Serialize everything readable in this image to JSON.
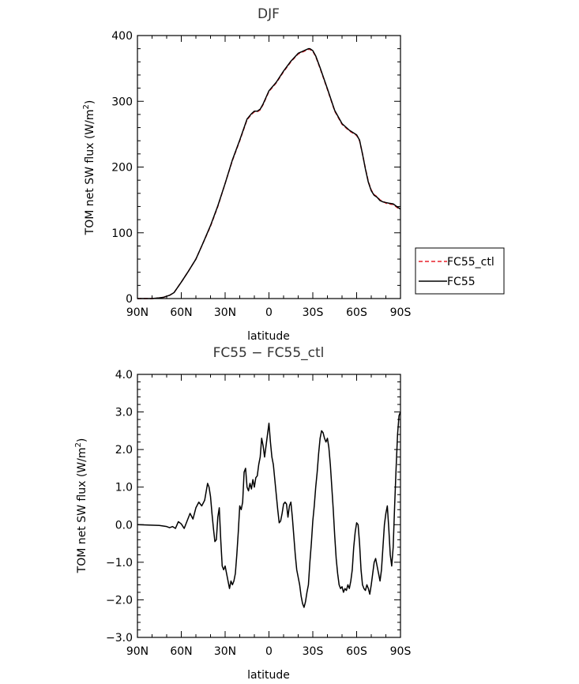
{
  "chart_data": [
    {
      "type": "line",
      "title": "DJF",
      "xlabel": "latitude",
      "ylabel_text": "TOM net SW flux (W/m",
      "ylabel_sup": "2",
      "ylabel_close": ")",
      "xlim": [
        -90,
        90
      ],
      "ylim": [
        0,
        400
      ],
      "x_ticks": [
        -90,
        -60,
        -30,
        0,
        30,
        60,
        90
      ],
      "x_tick_labels": [
        "90N",
        "60N",
        "30N",
        "0",
        "30S",
        "60S",
        "90S"
      ],
      "y_ticks": [
        0,
        100,
        200,
        300,
        400
      ],
      "y_tick_labels": [
        "0",
        "100",
        "200",
        "300",
        "400"
      ],
      "legend_position": "right",
      "series": [
        {
          "name": "FC55_ctl",
          "color": "#e8202a",
          "dash": "dashed",
          "x": [
            -90,
            -80,
            -75,
            -72,
            -68,
            -65,
            -60,
            -55,
            -50,
            -45,
            -40,
            -35,
            -30,
            -25,
            -20,
            -15,
            -12,
            -10,
            -8,
            -6,
            -4,
            -2,
            0,
            5,
            10,
            15,
            20,
            25,
            27,
            28,
            30,
            32,
            35,
            40,
            45,
            50,
            55,
            60,
            62,
            64,
            66,
            68,
            70,
            72,
            74,
            76,
            78,
            80,
            82,
            85,
            88,
            90
          ],
          "values": [
            0,
            0,
            1,
            2,
            5,
            9,
            25,
            42,
            60,
            85,
            110,
            140,
            175,
            210,
            240,
            272,
            280,
            284,
            284,
            287,
            295,
            305,
            315,
            328,
            345,
            360,
            372,
            377,
            379,
            379,
            376,
            368,
            350,
            318,
            285,
            265,
            255,
            248,
            240,
            220,
            198,
            178,
            165,
            158,
            155,
            150,
            148,
            145,
            144,
            143,
            138,
            135
          ]
        },
        {
          "name": "FC55",
          "color": "#000000",
          "dash": "solid",
          "x": [
            -90,
            -80,
            -75,
            -72,
            -68,
            -65,
            -60,
            -55,
            -50,
            -45,
            -40,
            -35,
            -30,
            -25,
            -20,
            -15,
            -12,
            -10,
            -8,
            -6,
            -4,
            -2,
            0,
            5,
            10,
            15,
            20,
            25,
            27,
            28,
            30,
            32,
            35,
            40,
            45,
            50,
            55,
            60,
            62,
            64,
            66,
            68,
            70,
            72,
            74,
            76,
            78,
            80,
            82,
            85,
            88,
            90
          ],
          "values": [
            0,
            0,
            1,
            2,
            5,
            9,
            25,
            42,
            60,
            85,
            111,
            141,
            175,
            211,
            241,
            273,
            281,
            285,
            285,
            288,
            296,
            306,
            316,
            329,
            346,
            361,
            373,
            378,
            380,
            380,
            377,
            369,
            351,
            319,
            286,
            266,
            256,
            249,
            241,
            220,
            197,
            177,
            164,
            157,
            154,
            149,
            147,
            146,
            145,
            144,
            139,
            136
          ]
        }
      ]
    },
    {
      "type": "line",
      "title": "FC55 − FC55_ctl",
      "xlabel": "latitude",
      "ylabel_text": "TOM net SW flux (W/m",
      "ylabel_sup": "2",
      "ylabel_close": ")",
      "xlim": [
        -90,
        90
      ],
      "ylim": [
        -3,
        4
      ],
      "x_ticks": [
        -90,
        -60,
        -30,
        0,
        30,
        60,
        90
      ],
      "x_tick_labels": [
        "90N",
        "60N",
        "30N",
        "0",
        "30S",
        "60S",
        "90S"
      ],
      "y_ticks": [
        -3,
        -2,
        -1,
        0,
        1,
        2,
        3,
        4
      ],
      "y_tick_labels": [
        "−3.0",
        "−2.0",
        "−1.0",
        "0.0",
        "1.0",
        "2.0",
        "3.0",
        "4.0"
      ],
      "series": [
        {
          "color": "#000000",
          "dash": "solid",
          "x": [
            -90,
            -75,
            -70,
            -68,
            -66,
            -64,
            -62,
            -60,
            -58,
            -56,
            -54,
            -52,
            -50,
            -48,
            -46,
            -44,
            -42,
            -41,
            -40,
            -39,
            -38,
            -37,
            -36,
            -35,
            -34,
            -33,
            -32,
            -31,
            -30,
            -29,
            -28,
            -27,
            -26,
            -25,
            -24,
            -23,
            -22,
            -21,
            -20,
            -19,
            -18,
            -17,
            -16,
            -15,
            -14,
            -13,
            -12,
            -11,
            -10,
            -9,
            -8,
            -7,
            -6,
            -5,
            -4,
            -3,
            -2,
            -1,
            0,
            1,
            2,
            3,
            4,
            5,
            6,
            7,
            8,
            9,
            10,
            11,
            12,
            13,
            14,
            15,
            16,
            17,
            18,
            19,
            20,
            21,
            22,
            23,
            24,
            25,
            26,
            27,
            28,
            29,
            30,
            31,
            32,
            33,
            34,
            35,
            36,
            37,
            38,
            39,
            40,
            41,
            42,
            43,
            44,
            45,
            46,
            47,
            48,
            49,
            50,
            51,
            52,
            53,
            54,
            55,
            56,
            57,
            58,
            59,
            60,
            61,
            62,
            63,
            64,
            65,
            66,
            67,
            68,
            69,
            70,
            71,
            72,
            73,
            74,
            75,
            76,
            77,
            78,
            79,
            80,
            81,
            82,
            83,
            84,
            85,
            86,
            87,
            88,
            89,
            90
          ],
          "values": [
            0.0,
            -0.02,
            -0.05,
            -0.08,
            -0.05,
            -0.1,
            0.08,
            0.02,
            -0.1,
            0.1,
            0.3,
            0.15,
            0.45,
            0.6,
            0.5,
            0.65,
            1.1,
            1.0,
            0.75,
            0.3,
            -0.1,
            -0.45,
            -0.4,
            0.2,
            0.45,
            -0.4,
            -1.1,
            -1.2,
            -1.1,
            -1.3,
            -1.5,
            -1.7,
            -1.5,
            -1.6,
            -1.5,
            -1.3,
            -0.8,
            -0.2,
            0.5,
            0.4,
            0.6,
            1.4,
            1.5,
            1.0,
            0.9,
            1.1,
            0.95,
            1.2,
            1.0,
            1.25,
            1.3,
            1.6,
            1.8,
            2.3,
            2.1,
            1.8,
            2.1,
            2.4,
            2.7,
            2.2,
            1.8,
            1.6,
            1.2,
            0.8,
            0.4,
            0.05,
            0.1,
            0.3,
            0.55,
            0.6,
            0.55,
            0.2,
            0.5,
            0.6,
            0.2,
            -0.3,
            -0.8,
            -1.2,
            -1.4,
            -1.6,
            -1.9,
            -2.1,
            -2.2,
            -2.05,
            -1.8,
            -1.6,
            -1.0,
            -0.5,
            0.1,
            0.5,
            1.0,
            1.4,
            1.9,
            2.3,
            2.5,
            2.45,
            2.3,
            2.2,
            2.3,
            2.05,
            1.6,
            1.0,
            0.4,
            -0.3,
            -0.9,
            -1.3,
            -1.6,
            -1.7,
            -1.65,
            -1.8,
            -1.7,
            -1.75,
            -1.6,
            -1.7,
            -1.5,
            -1.2,
            -0.6,
            -0.2,
            0.05,
            0.0,
            -0.5,
            -1.2,
            -1.6,
            -1.7,
            -1.75,
            -1.6,
            -1.7,
            -1.85,
            -1.6,
            -1.3,
            -1.0,
            -0.9,
            -1.1,
            -1.3,
            -1.5,
            -1.2,
            -0.6,
            0.0,
            0.3,
            0.5,
            -0.1,
            -0.8,
            -1.1,
            -0.6,
            0.5,
            1.5,
            2.4,
            2.9,
            3.0
          ]
        }
      ]
    }
  ]
}
